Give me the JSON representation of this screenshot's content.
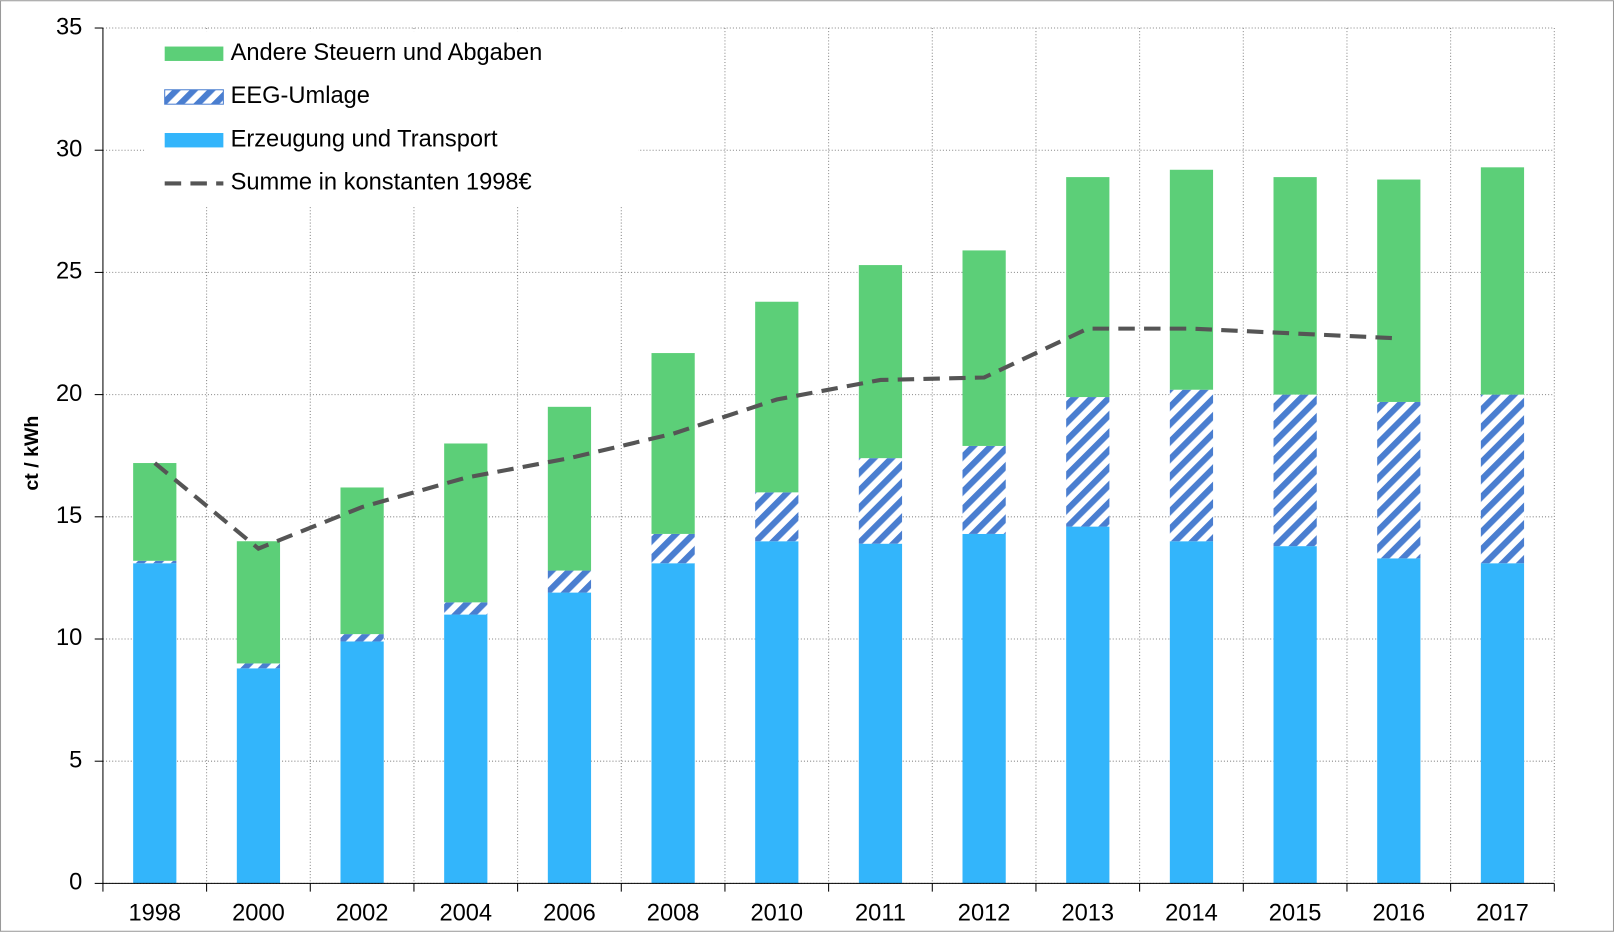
{
  "chart_data": {
    "type": "stacked_bar_line",
    "ylabel": "ct / kWh",
    "categories": [
      "1998",
      "2000",
      "2002",
      "2004",
      "2006",
      "2008",
      "2010",
      "2011",
      "2012",
      "2013",
      "2014",
      "2015",
      "2016",
      "2017"
    ],
    "series": [
      {
        "name": "Erzeugung und Transport",
        "color": "#33b5fb",
        "kind": "bar",
        "values": [
          13.1,
          8.8,
          9.9,
          11.0,
          11.9,
          13.1,
          14.0,
          13.9,
          14.3,
          14.6,
          14.0,
          13.8,
          13.3,
          13.1
        ]
      },
      {
        "name": "EEG-Umlage",
        "color": "#4a7ed0",
        "kind": "bar",
        "hatch": true,
        "values": [
          0.1,
          0.2,
          0.3,
          0.5,
          0.9,
          1.2,
          2.0,
          3.5,
          3.6,
          5.3,
          6.2,
          6.2,
          6.4,
          6.9
        ]
      },
      {
        "name": "Andere Steuern und Abgaben",
        "color": "#5ccf78",
        "kind": "bar",
        "values": [
          4.0,
          5.0,
          6.0,
          6.5,
          6.7,
          7.4,
          7.8,
          7.9,
          8.0,
          9.0,
          9.0,
          8.9,
          9.1,
          9.3
        ]
      },
      {
        "name": "Summe in konstanten 1998€",
        "color": "#555555",
        "kind": "line",
        "dashed": true,
        "values": [
          17.2,
          13.7,
          15.4,
          16.6,
          17.4,
          18.4,
          19.8,
          20.6,
          20.7,
          22.7,
          22.7,
          22.5,
          22.3,
          null
        ]
      }
    ],
    "legend_order": [
      2,
      1,
      0,
      3
    ],
    "legend": "upper left",
    "ylim": [
      0,
      35
    ],
    "yticks": [
      0,
      5,
      10,
      15,
      20,
      25,
      30,
      35
    ],
    "grid": true
  }
}
